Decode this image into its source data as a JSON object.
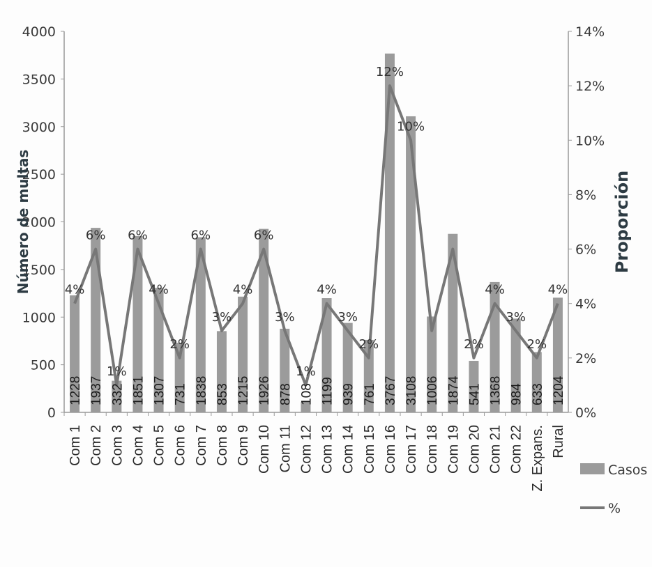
{
  "chart_data": {
    "type": "bar",
    "categories": [
      "Com 1",
      "Com 2",
      "Com 3",
      "Com 4",
      "Com 5",
      "Com 6",
      "Com 7",
      "Com 8",
      "Com 9",
      "Com 10",
      "Com 11",
      "Com 12",
      "Com 13",
      "Com 14",
      "Com 15",
      "Com 16",
      "Com 17",
      "Com 18",
      "Com 19",
      "Com 20",
      "Com 21",
      "Com 22",
      "Z. Expans.",
      "Rural"
    ],
    "series": [
      {
        "name": "Casos",
        "type": "bar",
        "axis": "left",
        "values": [
          1228,
          1937,
          332,
          1851,
          1307,
          731,
          1838,
          853,
          1215,
          1926,
          878,
          108,
          1199,
          939,
          761,
          3767,
          3108,
          1006,
          1874,
          541,
          1368,
          984,
          633,
          1204
        ],
        "labels": [
          "1228",
          "1937",
          "332",
          "1851",
          "1307",
          "731",
          "1838",
          "853",
          "1215",
          "1926",
          "878",
          "108",
          "1199",
          "939",
          "761",
          "3767",
          "3108",
          "1006",
          "1874",
          "541",
          "1368",
          "984",
          "633",
          "1204"
        ],
        "color": "#8a8a8a"
      },
      {
        "name": "%",
        "type": "line",
        "axis": "right",
        "values": [
          4,
          6,
          1,
          6,
          4,
          2,
          6,
          3,
          4,
          6,
          3,
          1,
          4,
          3,
          2,
          12,
          10,
          3,
          6,
          2,
          4,
          3,
          2,
          4
        ],
        "labels": [
          "4%",
          "6%",
          "1%",
          "6%",
          "4%",
          "2%",
          "6%",
          "3%",
          "4%",
          "6%",
          "3%",
          "1%",
          "4%",
          "3%",
          "2%",
          "12%",
          "10%",
          "",
          "",
          "2%",
          "4%",
          "3%",
          "2%",
          "4%"
        ],
        "color": "#777777"
      }
    ],
    "ylabel": "Número de multas",
    "y2label": "Proporción",
    "ylim": [
      0,
      4000
    ],
    "yticks": [
      "0",
      "500",
      "1000",
      "1500",
      "2000",
      "2500",
      "3000",
      "3500",
      "4000"
    ],
    "y2lim": [
      0,
      14
    ],
    "y2ticks": [
      "0%",
      "2%",
      "4%",
      "6%",
      "8%",
      "10%",
      "12%",
      "14%"
    ],
    "legend": {
      "position": "right",
      "entries": [
        "Casos",
        "%"
      ]
    },
    "grid": false
  }
}
